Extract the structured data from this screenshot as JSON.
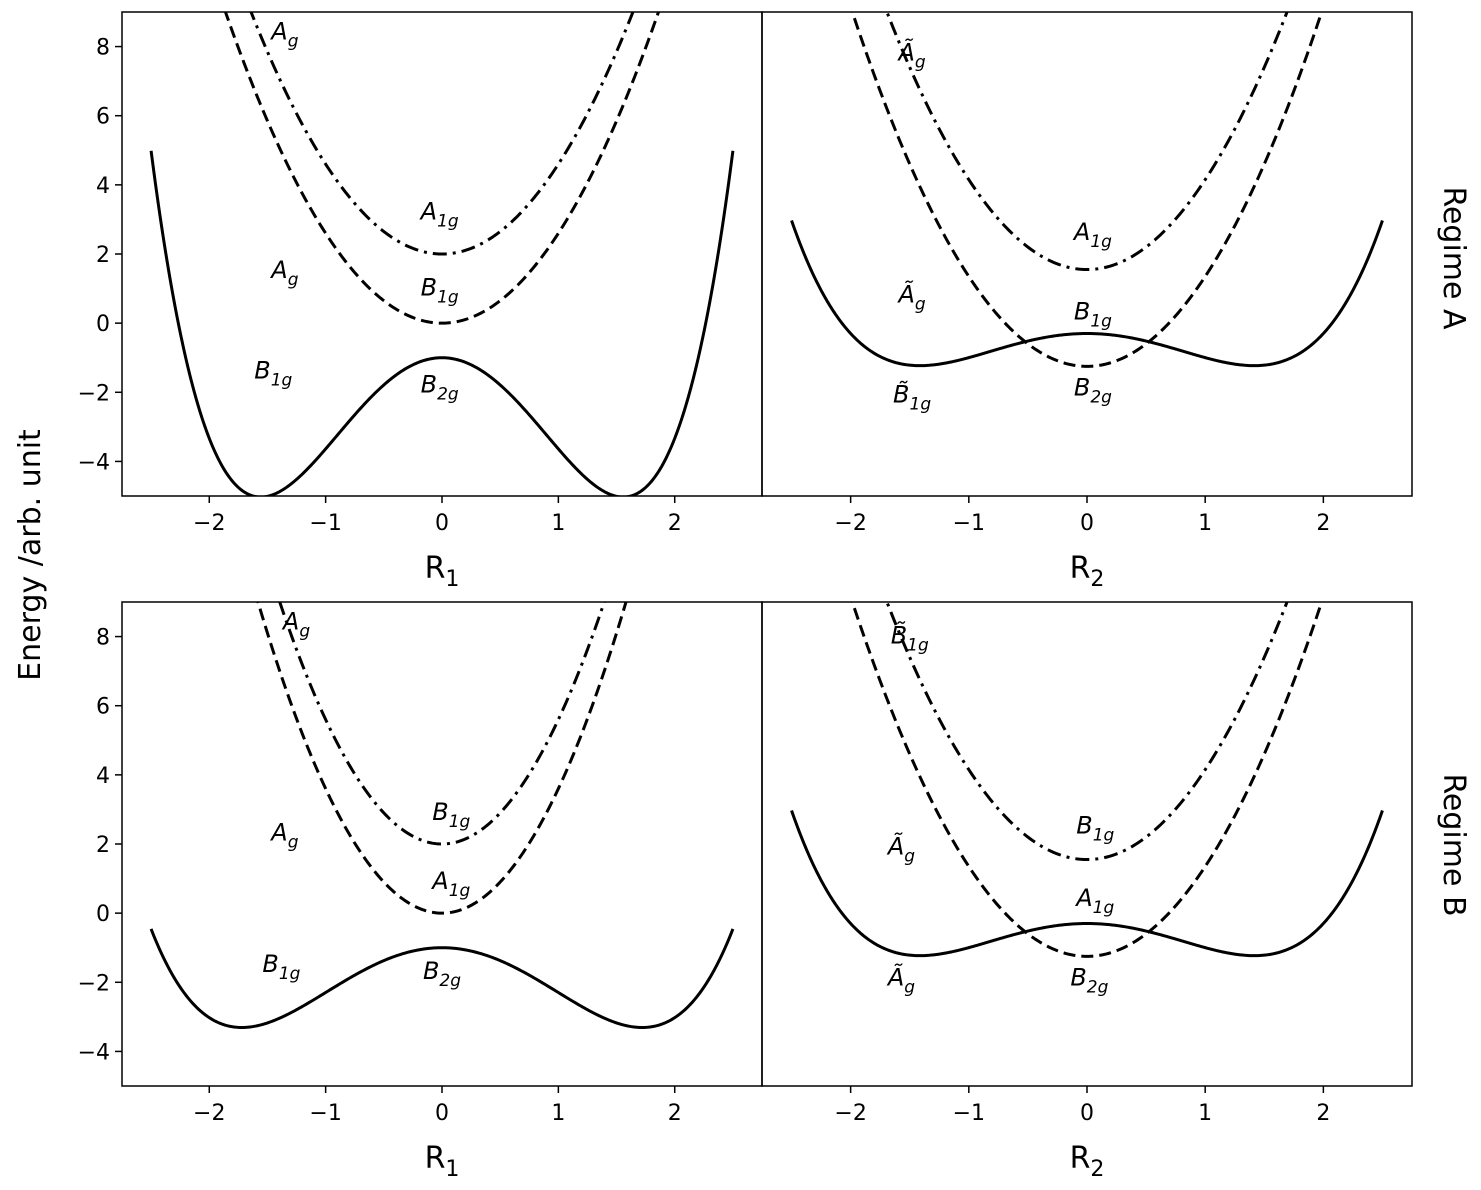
{
  "ylabel": "Energy /arb. unit",
  "regimes": [
    "Regime A",
    "Regime B"
  ],
  "chart_data": [
    {
      "type": "line",
      "regime": "Regime A",
      "xlabel": "R",
      "xlabel_sub": "1",
      "xlim": [
        -2.75,
        2.75
      ],
      "ylim": [
        -5,
        9
      ],
      "xticks": [
        -2,
        -1,
        0,
        1,
        2
      ],
      "yticks": [
        -4,
        -2,
        0,
        2,
        4,
        6,
        8
      ],
      "grid": false,
      "series": [
        {
          "style": "solid",
          "form": "double-well",
          "params": {
            "d": 1.5575,
            "b": 0.6849,
            "c": -1.0
          },
          "x_range": [
            -2.5,
            2.5
          ]
        },
        {
          "style": "dashed",
          "form": "parabola",
          "params": {
            "a": 2.6,
            "c": 0.0
          },
          "x_range": [
            -2.6,
            2.6
          ]
        },
        {
          "style": "dashdot",
          "form": "parabola",
          "params": {
            "a": 2.6,
            "c": 2.0
          },
          "x_range": [
            -2.6,
            2.6
          ]
        }
      ],
      "annotations": [
        {
          "base": "A",
          "sub": "g",
          "tilde": false,
          "x": -1.35,
          "y": 8.2
        },
        {
          "base": "A",
          "sub": "1g",
          "tilde": false,
          "x": -0.02,
          "y": 3.0
        },
        {
          "base": "A",
          "sub": "g",
          "tilde": false,
          "x": -1.35,
          "y": 1.3
        },
        {
          "base": "B",
          "sub": "1g",
          "tilde": false,
          "x": -0.02,
          "y": 0.8
        },
        {
          "base": "B",
          "sub": "1g",
          "tilde": false,
          "x": -1.45,
          "y": -1.6
        },
        {
          "base": "B",
          "sub": "2g",
          "tilde": false,
          "x": -0.02,
          "y": -2.0
        }
      ]
    },
    {
      "type": "line",
      "regime": "Regime A",
      "xlabel": "R",
      "xlabel_sub": "2",
      "xlim": [
        -2.75,
        2.75
      ],
      "ylim": [
        -5,
        9
      ],
      "xticks": [
        -2,
        -1,
        0,
        1,
        2
      ],
      "yticks": [
        -4,
        -2,
        0,
        2,
        4,
        6,
        8
      ],
      "grid": false,
      "series": [
        {
          "style": "solid",
          "form": "double-well",
          "params": {
            "d": 1.4142,
            "b": 0.2325,
            "c": -0.3
          },
          "x_range": [
            -2.5,
            2.5
          ]
        },
        {
          "style": "dashed",
          "form": "parabola",
          "params": {
            "a": 2.6,
            "c": -1.25
          },
          "x_range": [
            -2.6,
            2.6
          ]
        },
        {
          "style": "dashdot",
          "form": "parabola",
          "params": {
            "a": 2.6,
            "c": 1.55
          },
          "x_range": [
            -2.6,
            2.6
          ]
        }
      ],
      "annotations": [
        {
          "base": "A",
          "sub": "g",
          "tilde": true,
          "x": -1.48,
          "y": 7.6
        },
        {
          "base": "A",
          "sub": "1g",
          "tilde": false,
          "x": 0.05,
          "y": 2.4
        },
        {
          "base": "A",
          "sub": "g",
          "tilde": true,
          "x": -1.48,
          "y": 0.6
        },
        {
          "base": "B",
          "sub": "1g",
          "tilde": false,
          "x": 0.05,
          "y": 0.1
        },
        {
          "base": "B",
          "sub": "1g",
          "tilde": true,
          "x": -1.48,
          "y": -2.3
        },
        {
          "base": "B",
          "sub": "2g",
          "tilde": false,
          "x": 0.05,
          "y": -2.1
        }
      ]
    },
    {
      "type": "line",
      "regime": "Regime B",
      "xlabel": "R",
      "xlabel_sub": "1",
      "xlim": [
        -2.75,
        2.75
      ],
      "ylim": [
        -5,
        9
      ],
      "xticks": [
        -2,
        -1,
        0,
        1,
        2
      ],
      "yticks": [
        -4,
        -2,
        0,
        2,
        4,
        6,
        8
      ],
      "grid": false,
      "series": [
        {
          "style": "solid",
          "form": "double-well",
          "params": {
            "d": 1.7205,
            "b": 0.2634,
            "c": -1.0
          },
          "x_range": [
            -2.5,
            2.5
          ]
        },
        {
          "style": "dashed",
          "form": "parabola",
          "params": {
            "a": 3.6,
            "c": 0.0
          },
          "x_range": [
            -2.5,
            2.5
          ]
        },
        {
          "style": "dashdot",
          "form": "parabola",
          "params": {
            "a": 3.6,
            "c": 2.0
          },
          "x_range": [
            -2.5,
            2.5
          ]
        }
      ],
      "annotations": [
        {
          "base": "A",
          "sub": "g",
          "tilde": false,
          "x": -1.25,
          "y": 8.2
        },
        {
          "base": "B",
          "sub": "1g",
          "tilde": false,
          "x": 0.08,
          "y": 2.7
        },
        {
          "base": "A",
          "sub": "g",
          "tilde": false,
          "x": -1.35,
          "y": 2.1
        },
        {
          "base": "A",
          "sub": "1g",
          "tilde": false,
          "x": 0.08,
          "y": 0.7
        },
        {
          "base": "B",
          "sub": "1g",
          "tilde": false,
          "x": -1.38,
          "y": -1.7
        },
        {
          "base": "B",
          "sub": "2g",
          "tilde": false,
          "x": 0.0,
          "y": -1.9
        }
      ]
    },
    {
      "type": "line",
      "regime": "Regime B",
      "xlabel": "R",
      "xlabel_sub": "2",
      "xlim": [
        -2.75,
        2.75
      ],
      "ylim": [
        -5,
        9
      ],
      "xticks": [
        -2,
        -1,
        0,
        1,
        2
      ],
      "yticks": [
        -4,
        -2,
        0,
        2,
        4,
        6,
        8
      ],
      "grid": false,
      "series": [
        {
          "style": "solid",
          "form": "double-well",
          "params": {
            "d": 1.4142,
            "b": 0.2325,
            "c": -0.3
          },
          "x_range": [
            -2.5,
            2.5
          ]
        },
        {
          "style": "dashed",
          "form": "parabola",
          "params": {
            "a": 2.6,
            "c": -1.25
          },
          "x_range": [
            -2.6,
            2.6
          ]
        },
        {
          "style": "dashdot",
          "form": "parabola",
          "params": {
            "a": 2.6,
            "c": 1.55
          },
          "x_range": [
            -2.6,
            2.6
          ]
        }
      ],
      "annotations": [
        {
          "base": "B",
          "sub": "1g",
          "tilde": true,
          "x": -1.5,
          "y": 7.8
        },
        {
          "base": "B",
          "sub": "1g",
          "tilde": false,
          "x": 0.07,
          "y": 2.3
        },
        {
          "base": "A",
          "sub": "g",
          "tilde": true,
          "x": -1.57,
          "y": 1.7
        },
        {
          "base": "A",
          "sub": "1g",
          "tilde": false,
          "x": 0.07,
          "y": 0.2
        },
        {
          "base": "A",
          "sub": "g",
          "tilde": true,
          "x": -1.57,
          "y": -2.1
        },
        {
          "base": "B",
          "sub": "2g",
          "tilde": false,
          "x": 0.02,
          "y": -2.1
        }
      ]
    }
  ]
}
